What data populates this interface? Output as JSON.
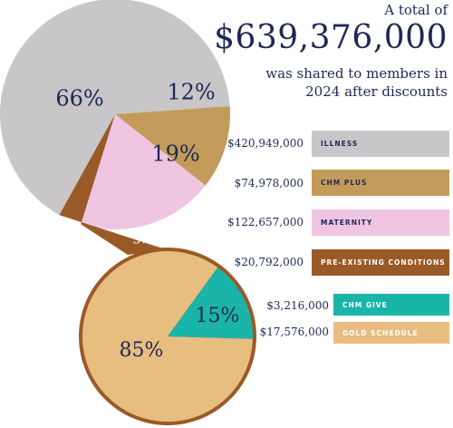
{
  "headline": {
    "intro": "A total of",
    "total": "$639,376,000",
    "line2": "was shared to members in",
    "line3": "2024 after discounts"
  },
  "colors": {
    "illness": "#c8c6c8",
    "chm_plus": "#c29b5b",
    "maternity": "#efc5e2",
    "pre_existing": "#9a5a28",
    "chm_give": "#1ab5a8",
    "gold_schedule": "#e8bd80",
    "text": "#1f2855"
  },
  "legend": [
    {
      "amount": "$420,949,000",
      "label": "ILLNESS",
      "color": "#c8c6c8",
      "text_color": "#1f2855"
    },
    {
      "amount": "$74,978,000",
      "label": "CHM PLUS",
      "color": "#c29b5b",
      "text_color": "#1f2855"
    },
    {
      "amount": "$122,657,000",
      "label": "MATERNITY",
      "color": "#efc5e2",
      "text_color": "#1f2855"
    },
    {
      "amount": "$20,792,000",
      "label": "PRE-EXISTING CONDITIONS",
      "color": "#9a5a28",
      "text_color": "#ffffff"
    },
    {
      "amount": "$3,216,000",
      "label": "CHM GIVE",
      "color": "#1ab5a8",
      "text_color": "#ffffff"
    },
    {
      "amount": "$17,576,000",
      "label": "GOLD SCHEDULE",
      "color": "#e8bd80",
      "text_color": "#ffffff"
    }
  ],
  "chart_data": [
    {
      "type": "pie",
      "categories": [
        "Illness",
        "CHM Plus",
        "Maternity",
        "Pre-Existing Conditions"
      ],
      "values": [
        420949000,
        74978000,
        122657000,
        20792000
      ],
      "labels": [
        "66%",
        "12%",
        "19%",
        "3%"
      ],
      "percentages": [
        66,
        12,
        19,
        3
      ]
    },
    {
      "type": "pie",
      "categories": [
        "CHM Give",
        "Gold Schedule"
      ],
      "values": [
        3216000,
        17576000
      ],
      "labels": [
        "15%",
        "85%"
      ],
      "percentages": [
        15,
        85
      ]
    }
  ]
}
